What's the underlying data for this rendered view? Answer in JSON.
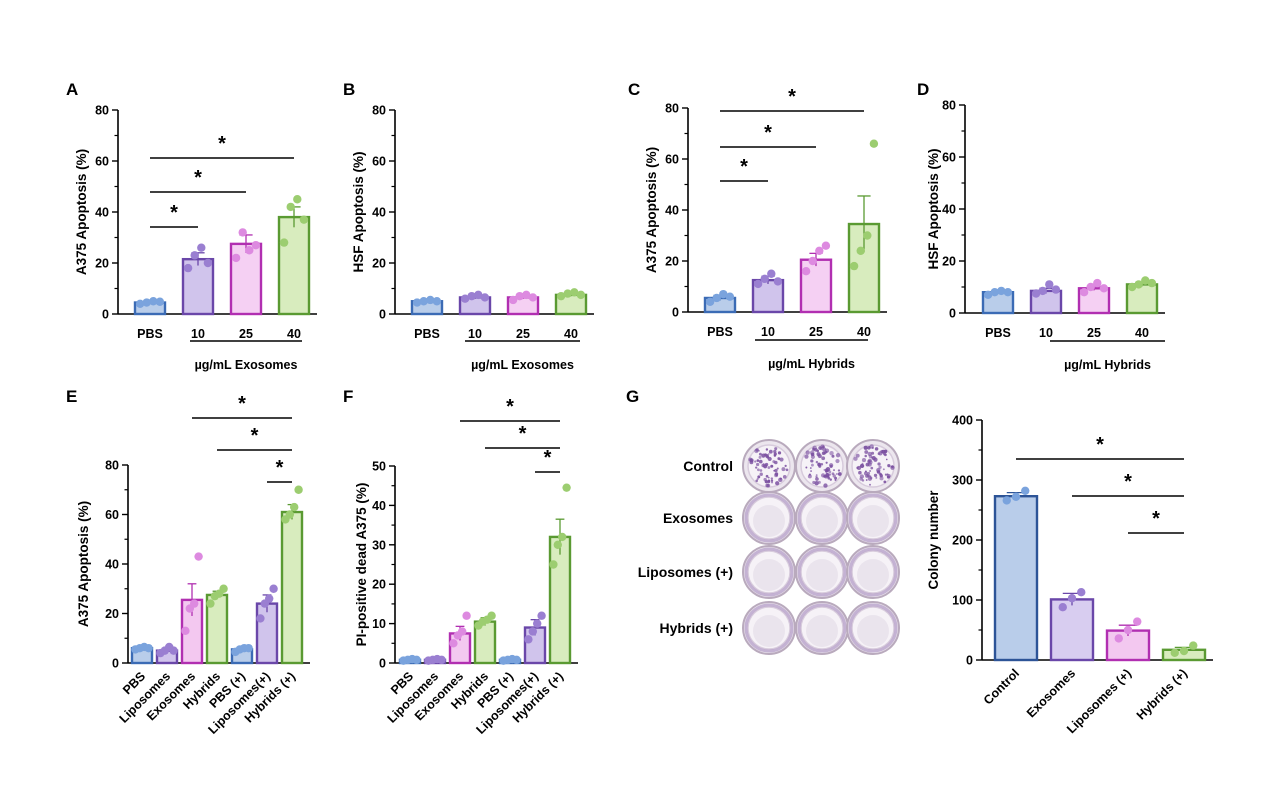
{
  "colors": {
    "PBS": {
      "fill": "#b9cdea",
      "stroke": "#3b6bb5",
      "dot": "#7aa3dd"
    },
    "Liposomes": {
      "fill": "#d0c4ec",
      "stroke": "#6a47a9",
      "dot": "#9a7fd1"
    },
    "Exosomes": {
      "fill": "#d8cdf0",
      "stroke": "#6a47a9",
      "dot": "#9a7fd1"
    },
    "Hybrids": {
      "fill": "#d8ecbe",
      "stroke": "#5a9a32",
      "dot": "#9ccd70"
    },
    "PBS (+)": {
      "fill": "#b9cdea",
      "stroke": "#3b6bb5",
      "dot": "#7aa3dd"
    },
    "Liposomes(+)": {
      "fill": "#d0c4ec",
      "stroke": "#6a47a9",
      "dot": "#9a7fd1"
    },
    "Liposomes (+)": {
      "fill": "#f3c8f0",
      "stroke": "#b12fb1",
      "dot": "#dd8ae0"
    },
    "Hybrids (+)": {
      "fill": "#d8ecbe",
      "stroke": "#5a9a32",
      "dot": "#9ccd70"
    },
    "Control": {
      "fill": "#b9cdea",
      "stroke": "#2d5497",
      "dot": "#7aa3dd"
    },
    "10": {
      "fill": "#d0c4ec",
      "stroke": "#6a47a9",
      "dot": "#9a7fd1"
    },
    "25": {
      "fill": "#f5d0f3",
      "stroke": "#b12fb1",
      "dot": "#dd8ae0"
    },
    "40": {
      "fill": "#d8ecbe",
      "stroke": "#5a9a32",
      "dot": "#9ccd70"
    },
    "Exosomes_E": {
      "fill": "#f3c8f0",
      "stroke": "#b12fb1",
      "dot": "#dd8ae0"
    },
    "plate_bg": "#ece6ee",
    "plate_rim": "#b9aabd",
    "plate_stain": "#7a4fa0"
  },
  "chart_data": [
    {
      "id": "A",
      "type": "bar",
      "panel_label": "A",
      "ylabel": "A375 Apoptosis (%)",
      "ylim": [
        0,
        80
      ],
      "yticks": [
        0,
        20,
        40,
        60,
        80
      ],
      "categories": [
        "PBS",
        "10",
        "25",
        "40"
      ],
      "values": [
        4.5,
        21.5,
        27.5,
        38
      ],
      "errors": [
        0.5,
        2.5,
        3.5,
        4
      ],
      "points": [
        [
          4,
          4.5,
          5,
          4.8
        ],
        [
          18,
          23,
          26,
          20
        ],
        [
          22,
          32,
          25,
          27
        ],
        [
          28,
          42,
          45,
          37
        ]
      ],
      "group_label": "µg/mL Exosomes",
      "significance": [
        {
          "from": 0,
          "to": 1,
          "label": "*"
        },
        {
          "from": 0,
          "to": 2,
          "label": "*"
        },
        {
          "from": 0,
          "to": 3,
          "label": "*"
        }
      ]
    },
    {
      "id": "B",
      "type": "bar",
      "panel_label": "B",
      "ylabel": "HSF Apoptosis (%)",
      "ylim": [
        0,
        80
      ],
      "yticks": [
        0,
        20,
        40,
        60,
        80
      ],
      "categories": [
        "PBS",
        "10",
        "25",
        "40"
      ],
      "values": [
        5,
        6.5,
        6.5,
        7.5
      ],
      "errors": [
        0.3,
        0.5,
        0.5,
        0.5
      ],
      "points": [
        [
          4.5,
          5,
          5.5,
          5
        ],
        [
          6,
          7,
          7.5,
          6.5
        ],
        [
          5.5,
          7,
          7.5,
          6.5
        ],
        [
          7,
          8,
          8.5,
          7.5
        ]
      ],
      "group_label": "µg/mL Exosomes",
      "significance": []
    },
    {
      "id": "C",
      "type": "bar",
      "panel_label": "C",
      "ylabel": "A375 Apoptosis (%)",
      "ylim": [
        0,
        80
      ],
      "yticks": [
        0,
        20,
        40,
        60,
        80
      ],
      "categories": [
        "PBS",
        "10",
        "25",
        "40"
      ],
      "values": [
        5.5,
        12.5,
        20.5,
        34.5
      ],
      "errors": [
        1,
        1.5,
        2.5,
        11
      ],
      "points": [
        [
          4,
          5.5,
          7,
          6
        ],
        [
          11,
          13,
          15,
          12
        ],
        [
          16,
          20,
          24,
          26
        ],
        [
          18,
          24,
          30,
          66
        ]
      ],
      "group_label": "µg/mL Hybrids",
      "significance": [
        {
          "from": 0,
          "to": 1,
          "label": "*"
        },
        {
          "from": 0,
          "to": 2,
          "label": "*"
        },
        {
          "from": 0,
          "to": 3,
          "label": "*"
        }
      ]
    },
    {
      "id": "D",
      "type": "bar",
      "panel_label": "D",
      "ylabel": "HSF Apoptosis (%)",
      "ylim": [
        0,
        80
      ],
      "yticks": [
        0,
        20,
        40,
        60,
        80
      ],
      "categories": [
        "PBS",
        "10",
        "25",
        "40"
      ],
      "values": [
        8,
        8.5,
        9.5,
        11
      ],
      "errors": [
        0.5,
        1,
        0.8,
        0.8
      ],
      "points": [
        [
          7,
          8,
          8.5,
          8
        ],
        [
          7.5,
          8.5,
          11,
          9
        ],
        [
          8,
          10,
          11.5,
          9.5
        ],
        [
          10,
          11,
          12.5,
          11.5
        ]
      ],
      "group_label": "µg/mL Hybrids",
      "significance": []
    },
    {
      "id": "E",
      "type": "bar",
      "panel_label": "E",
      "ylabel": "A375 Apoptosis (%)",
      "ylim": [
        0,
        80
      ],
      "yticks": [
        0,
        20,
        40,
        60,
        80
      ],
      "categories": [
        "PBS",
        "Liposomes",
        "Exosomes",
        "Hybrids",
        "PBS (+)",
        "Liposomes(+)",
        "Hybrids (+)"
      ],
      "values": [
        6,
        5,
        25.5,
        27.5,
        5.5,
        24,
        61
      ],
      "errors": [
        0.5,
        0.8,
        6.5,
        1.5,
        0.8,
        3.5,
        3
      ],
      "points": [
        [
          5.5,
          6,
          6.5,
          6
        ],
        [
          4,
          5,
          6.5,
          5
        ],
        [
          13,
          22,
          24,
          43
        ],
        [
          24,
          27,
          28,
          30
        ],
        [
          4.5,
          5.5,
          6,
          6
        ],
        [
          18,
          24,
          26,
          30
        ],
        [
          58,
          60,
          63,
          70
        ]
      ],
      "group_label": "",
      "significance": [
        {
          "from": 5,
          "to": 6,
          "label": "*"
        },
        {
          "from": 3,
          "to": 6,
          "label": "*"
        },
        {
          "from": 2,
          "to": 6,
          "label": "*"
        }
      ]
    },
    {
      "id": "F",
      "type": "bar",
      "panel_label": "F",
      "ylabel": "PI-positive dead A375 (%)",
      "ylim": [
        0,
        50
      ],
      "yticks": [
        0,
        10,
        20,
        30,
        40,
        50
      ],
      "categories": [
        "PBS",
        "Liposomes",
        "Exosomes",
        "Hybrids",
        "PBS (+)",
        "Liposomes(+)",
        "Hybrids (+)"
      ],
      "values": [
        0.8,
        0.8,
        7.5,
        10.5,
        0.8,
        9,
        32
      ],
      "errors": [
        0.2,
        0.2,
        1.8,
        1,
        0.2,
        2,
        4.5
      ],
      "points": [
        [
          0.6,
          0.8,
          1,
          0.8
        ],
        [
          0.6,
          0.8,
          1,
          0.8
        ],
        [
          5,
          7,
          8,
          12
        ],
        [
          9.5,
          10.5,
          11,
          12
        ],
        [
          0.6,
          0.8,
          1,
          0.8
        ],
        [
          6,
          8,
          10,
          12
        ],
        [
          25,
          30,
          32,
          44.5
        ]
      ],
      "group_label": "",
      "significance": [
        {
          "from": 5,
          "to": 6,
          "label": "*"
        },
        {
          "from": 3,
          "to": 6,
          "label": "*"
        },
        {
          "from": 2,
          "to": 6,
          "label": "*"
        }
      ]
    },
    {
      "id": "G",
      "type": "bar",
      "panel_label": "",
      "ylabel": "Colony number",
      "ylim": [
        0,
        400
      ],
      "yticks": [
        0,
        100,
        200,
        300,
        400
      ],
      "categories": [
        "Control",
        "Exosomes",
        "Liposomes (+)",
        "Hybrids (+)"
      ],
      "values": [
        273,
        101,
        49,
        17
      ],
      "errors": [
        6,
        10,
        9,
        4
      ],
      "points": [
        [
          266,
          272,
          282
        ],
        [
          88,
          103,
          113
        ],
        [
          36,
          50,
          64
        ],
        [
          12,
          15,
          24
        ]
      ],
      "group_label": "",
      "significance": [
        {
          "from": 2,
          "to": 3,
          "label": "*"
        },
        {
          "from": 1,
          "to": 3,
          "label": "*"
        },
        {
          "from": 0,
          "to": 3,
          "label": "*"
        }
      ]
    }
  ],
  "panel_G": {
    "label": "G",
    "rows": [
      "Control",
      "Exosomes",
      "Liposomes (+)",
      "Hybrids (+)"
    ],
    "row_stain": [
      0.85,
      0.18,
      0.15,
      0.2
    ]
  }
}
